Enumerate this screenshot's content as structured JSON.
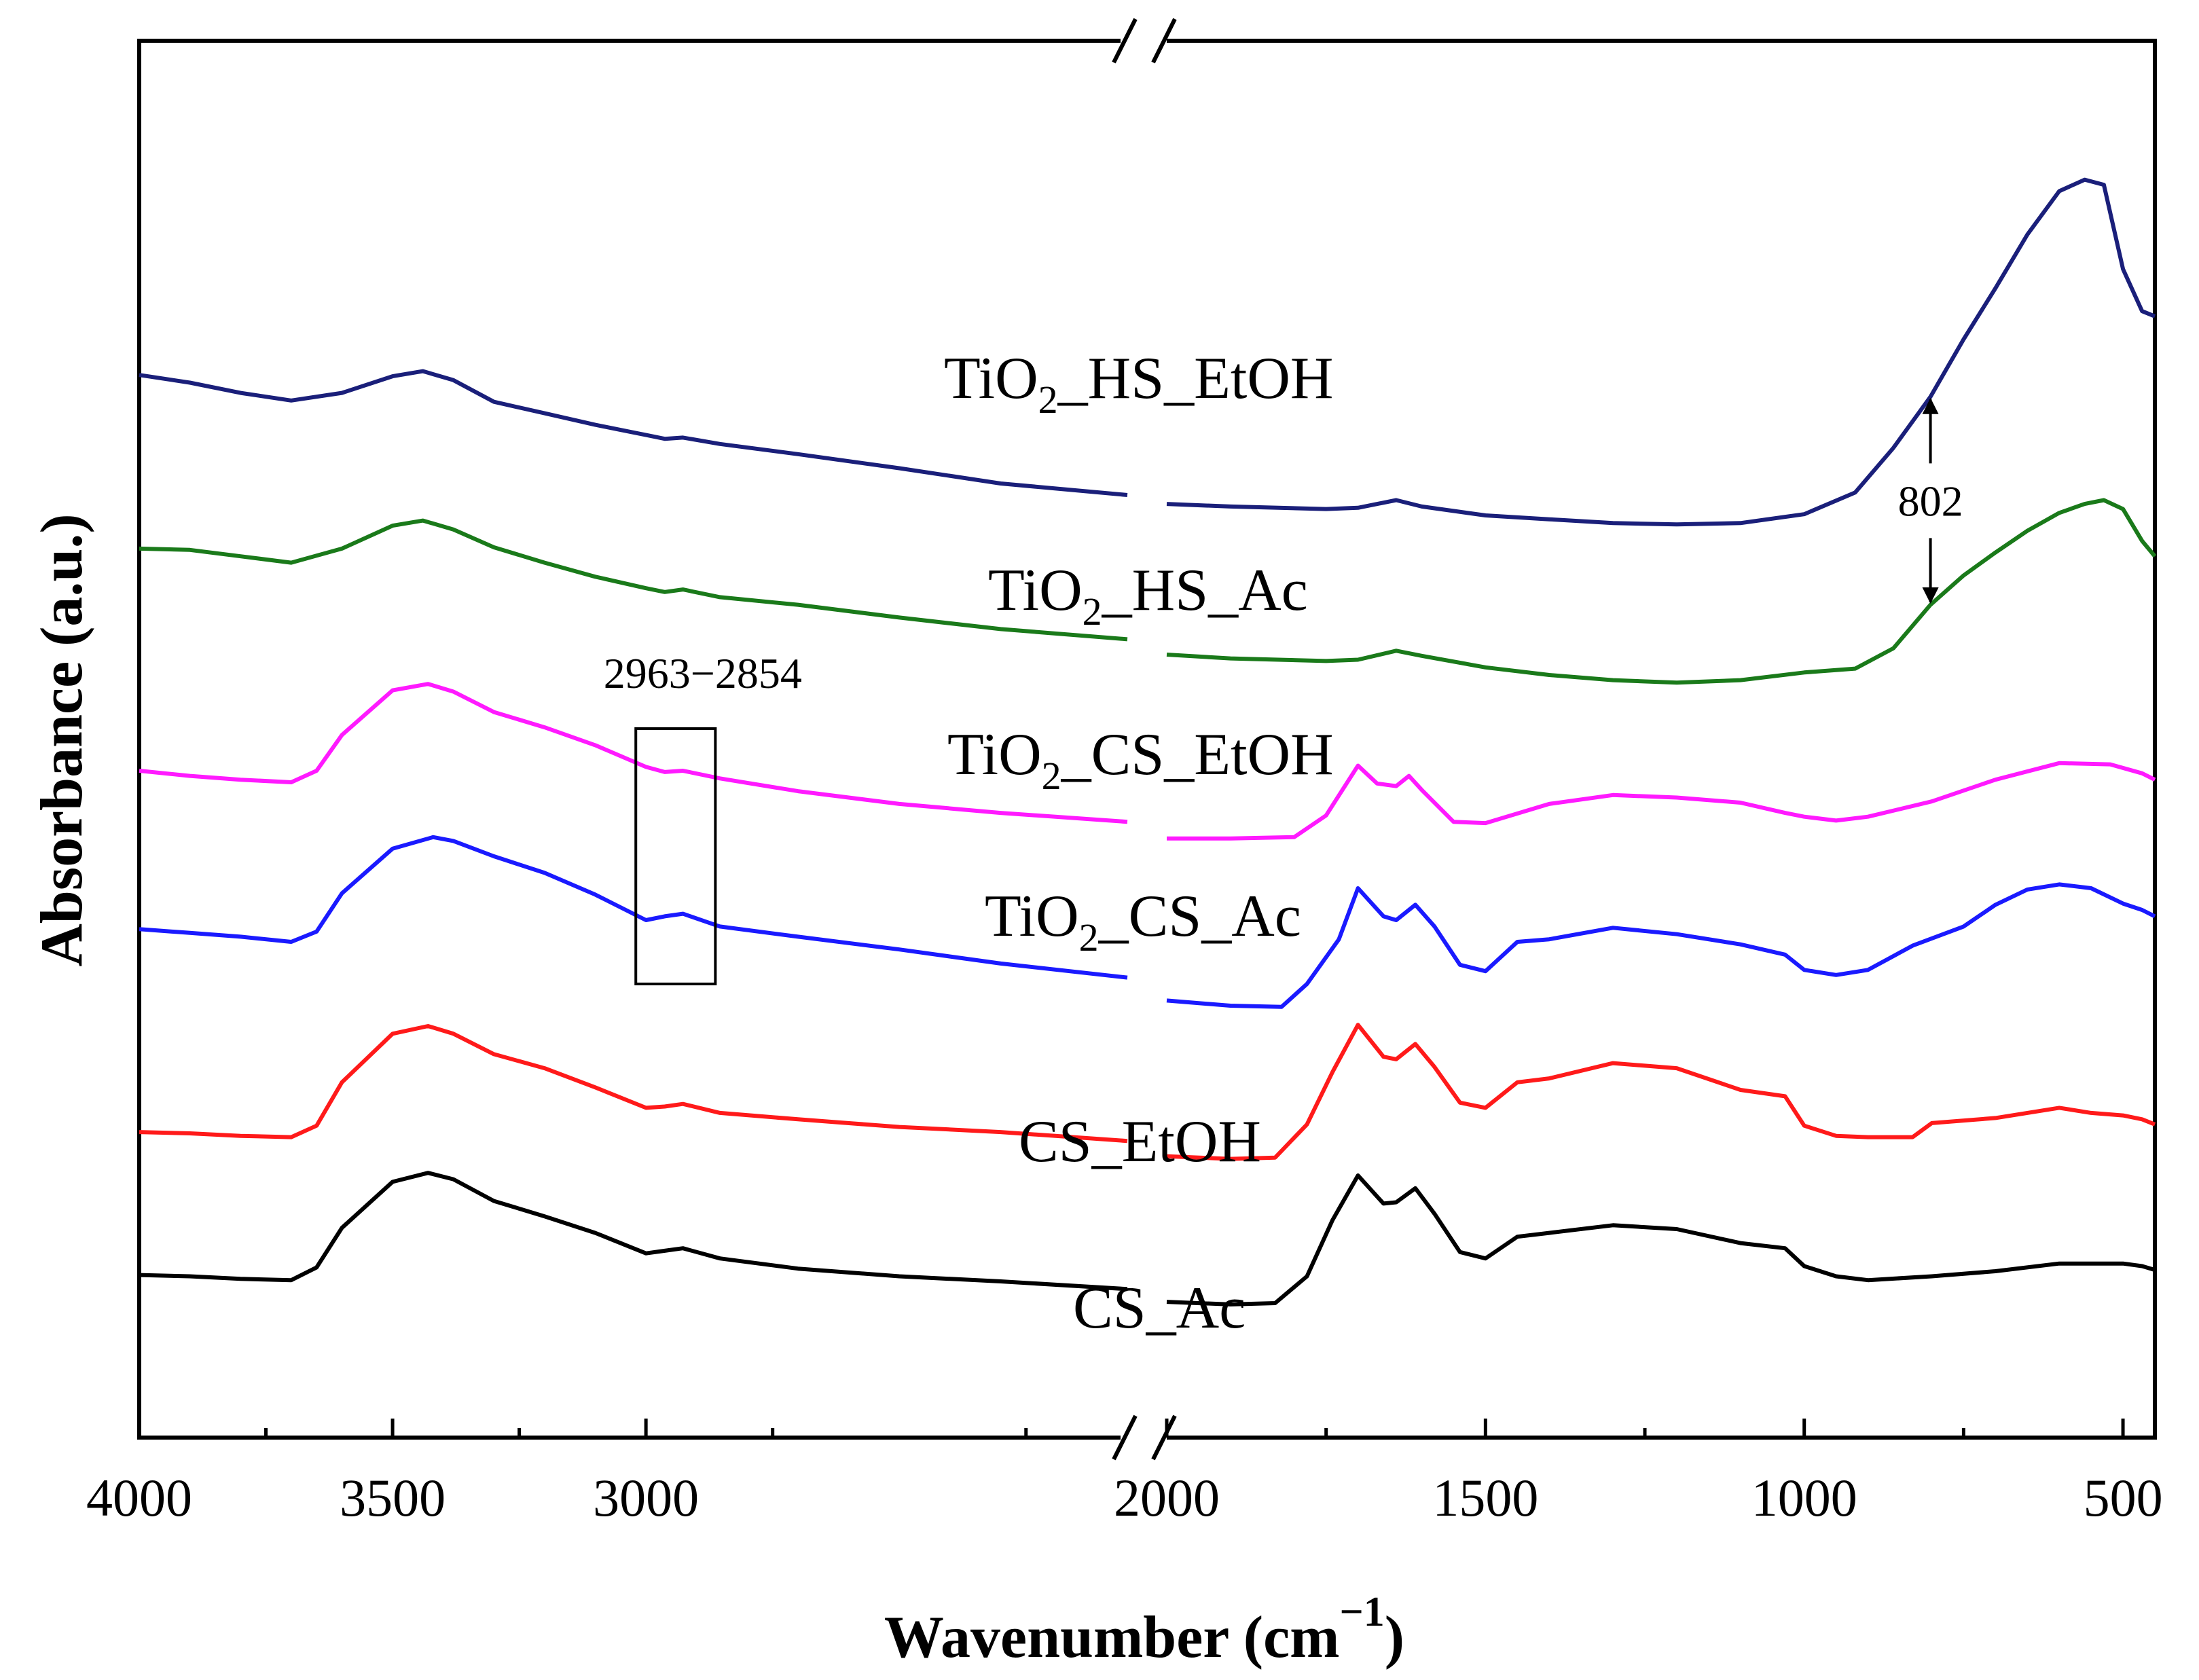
{
  "chart_data": {
    "type": "line",
    "title": "",
    "xlabel": "Wavenumber (cm",
    "xlabel_sup": "−1",
    "xlabel_close": ")",
    "ylabel": "Absorbance (a.u.)",
    "x_axis_reversed": true,
    "x_axis_break": [
      2050,
      2000
    ],
    "xlim_left_segment": [
      4000,
      2050
    ],
    "xlim_right_segment": [
      2000,
      450
    ],
    "xticks": [
      4000,
      3500,
      3000,
      2000,
      1500,
      1000,
      500
    ],
    "xtick_labels": [
      "4000",
      "3500",
      "3000",
      "2000",
      "1500",
      "1000",
      "500"
    ],
    "y_ticks_shown": false,
    "ylim_display": [
      0,
      100
    ],
    "series": [
      {
        "name": "TiO2_HS_EtOH",
        "label_main": "TiO",
        "label_sub": "2",
        "label_rest": "_HS_EtOH",
        "color": "#1a1f7a",
        "points": [
          [
            4000,
            80.2
          ],
          [
            3900,
            79.6
          ],
          [
            3800,
            78.8
          ],
          [
            3700,
            78.2
          ],
          [
            3600,
            78.8
          ],
          [
            3500,
            80.1
          ],
          [
            3440,
            80.5
          ],
          [
            3380,
            79.8
          ],
          [
            3300,
            78.1
          ],
          [
            3200,
            77.2
          ],
          [
            3100,
            76.3
          ],
          [
            3000,
            75.5
          ],
          [
            2963,
            75.2
          ],
          [
            2927,
            75.3
          ],
          [
            2854,
            74.8
          ],
          [
            2700,
            74.0
          ],
          [
            2500,
            72.9
          ],
          [
            2300,
            71.7
          ],
          [
            2050,
            70.8
          ],
          [
            2000,
            70.1
          ],
          [
            1900,
            69.9
          ],
          [
            1750,
            69.7
          ],
          [
            1700,
            69.8
          ],
          [
            1640,
            70.4
          ],
          [
            1600,
            69.9
          ],
          [
            1500,
            69.2
          ],
          [
            1400,
            68.9
          ],
          [
            1300,
            68.6
          ],
          [
            1200,
            68.5
          ],
          [
            1100,
            68.6
          ],
          [
            1000,
            69.3
          ],
          [
            920,
            71.0
          ],
          [
            860,
            74.5
          ],
          [
            802,
            78.5
          ],
          [
            750,
            83.0
          ],
          [
            700,
            87.0
          ],
          [
            650,
            91.2
          ],
          [
            600,
            94.6
          ],
          [
            560,
            95.5
          ],
          [
            530,
            95.1
          ],
          [
            500,
            88.5
          ],
          [
            470,
            85.2
          ],
          [
            450,
            84.8
          ]
        ]
      },
      {
        "name": "TiO2_HS_Ac",
        "label_main": "TiO",
        "label_sub": "2",
        "label_rest": "_HS_Ac",
        "color": "#1a7a1a",
        "points": [
          [
            4000,
            66.6
          ],
          [
            3900,
            66.5
          ],
          [
            3800,
            66.0
          ],
          [
            3700,
            65.5
          ],
          [
            3600,
            66.6
          ],
          [
            3500,
            68.4
          ],
          [
            3440,
            68.8
          ],
          [
            3380,
            68.1
          ],
          [
            3300,
            66.7
          ],
          [
            3200,
            65.5
          ],
          [
            3100,
            64.4
          ],
          [
            3000,
            63.5
          ],
          [
            2963,
            63.2
          ],
          [
            2927,
            63.4
          ],
          [
            2854,
            62.8
          ],
          [
            2700,
            62.2
          ],
          [
            2500,
            61.2
          ],
          [
            2300,
            60.3
          ],
          [
            2050,
            59.5
          ],
          [
            2000,
            58.3
          ],
          [
            1900,
            58.0
          ],
          [
            1750,
            57.8
          ],
          [
            1700,
            57.9
          ],
          [
            1640,
            58.6
          ],
          [
            1600,
            58.2
          ],
          [
            1500,
            57.3
          ],
          [
            1400,
            56.7
          ],
          [
            1300,
            56.3
          ],
          [
            1200,
            56.1
          ],
          [
            1100,
            56.3
          ],
          [
            1000,
            56.9
          ],
          [
            920,
            57.2
          ],
          [
            860,
            58.8
          ],
          [
            802,
            62.2
          ],
          [
            750,
            64.5
          ],
          [
            700,
            66.3
          ],
          [
            650,
            68.0
          ],
          [
            600,
            69.4
          ],
          [
            560,
            70.1
          ],
          [
            530,
            70.4
          ],
          [
            500,
            69.7
          ],
          [
            470,
            67.2
          ],
          [
            450,
            66.0
          ]
        ]
      },
      {
        "name": "TiO2_CS_EtOH",
        "label_main": "TiO",
        "label_sub": "2",
        "label_rest": "_CS_EtOH",
        "color": "#ff1aff",
        "points": [
          [
            4000,
            49.2
          ],
          [
            3900,
            48.8
          ],
          [
            3800,
            48.5
          ],
          [
            3700,
            48.3
          ],
          [
            3650,
            49.2
          ],
          [
            3600,
            52.0
          ],
          [
            3500,
            55.5
          ],
          [
            3430,
            56.0
          ],
          [
            3380,
            55.4
          ],
          [
            3300,
            53.8
          ],
          [
            3200,
            52.6
          ],
          [
            3100,
            51.2
          ],
          [
            3000,
            49.5
          ],
          [
            2963,
            49.1
          ],
          [
            2927,
            49.2
          ],
          [
            2854,
            48.6
          ],
          [
            2700,
            47.6
          ],
          [
            2500,
            46.6
          ],
          [
            2300,
            45.9
          ],
          [
            2050,
            45.2
          ],
          [
            2000,
            43.9
          ],
          [
            1900,
            43.9
          ],
          [
            1800,
            44.0
          ],
          [
            1750,
            45.7
          ],
          [
            1700,
            49.6
          ],
          [
            1670,
            48.2
          ],
          [
            1640,
            48.0
          ],
          [
            1620,
            48.8
          ],
          [
            1600,
            47.7
          ],
          [
            1550,
            45.2
          ],
          [
            1500,
            45.1
          ],
          [
            1400,
            46.6
          ],
          [
            1300,
            47.3
          ],
          [
            1200,
            47.1
          ],
          [
            1100,
            46.7
          ],
          [
            1030,
            45.9
          ],
          [
            1000,
            45.6
          ],
          [
            950,
            45.3
          ],
          [
            900,
            45.6
          ],
          [
            800,
            46.8
          ],
          [
            700,
            48.5
          ],
          [
            600,
            49.8
          ],
          [
            520,
            49.7
          ],
          [
            470,
            49.0
          ],
          [
            450,
            48.5
          ]
        ]
      },
      {
        "name": "TiO2_CS_Ac",
        "label_main": "TiO",
        "label_sub": "2",
        "label_rest": "_CS_Ac",
        "color": "#1a1aff",
        "points": [
          [
            4000,
            36.8
          ],
          [
            3900,
            36.5
          ],
          [
            3800,
            36.2
          ],
          [
            3700,
            35.8
          ],
          [
            3650,
            36.6
          ],
          [
            3600,
            39.6
          ],
          [
            3500,
            43.1
          ],
          [
            3420,
            44.0
          ],
          [
            3380,
            43.7
          ],
          [
            3300,
            42.5
          ],
          [
            3200,
            41.2
          ],
          [
            3100,
            39.5
          ],
          [
            3000,
            37.5
          ],
          [
            2963,
            37.8
          ],
          [
            2927,
            38.0
          ],
          [
            2854,
            37.0
          ],
          [
            2700,
            36.2
          ],
          [
            2500,
            35.2
          ],
          [
            2300,
            34.1
          ],
          [
            2050,
            33.0
          ],
          [
            2000,
            31.2
          ],
          [
            1900,
            30.8
          ],
          [
            1820,
            30.7
          ],
          [
            1780,
            32.5
          ],
          [
            1730,
            36.0
          ],
          [
            1700,
            40.0
          ],
          [
            1660,
            37.8
          ],
          [
            1640,
            37.5
          ],
          [
            1610,
            38.7
          ],
          [
            1580,
            37.0
          ],
          [
            1540,
            34.0
          ],
          [
            1500,
            33.5
          ],
          [
            1450,
            35.8
          ],
          [
            1400,
            36.0
          ],
          [
            1300,
            36.9
          ],
          [
            1200,
            36.4
          ],
          [
            1100,
            35.6
          ],
          [
            1030,
            34.8
          ],
          [
            1000,
            33.6
          ],
          [
            950,
            33.2
          ],
          [
            900,
            33.6
          ],
          [
            830,
            35.5
          ],
          [
            750,
            37.0
          ],
          [
            700,
            38.7
          ],
          [
            650,
            39.9
          ],
          [
            600,
            40.3
          ],
          [
            550,
            40.0
          ],
          [
            500,
            38.8
          ],
          [
            470,
            38.3
          ],
          [
            450,
            37.8
          ]
        ]
      },
      {
        "name": "CS_EtOH",
        "label_main": "CS_EtOH",
        "label_sub": "",
        "label_rest": "",
        "color": "#ff1a1a",
        "points": [
          [
            4000,
            20.9
          ],
          [
            3900,
            20.8
          ],
          [
            3800,
            20.6
          ],
          [
            3700,
            20.5
          ],
          [
            3650,
            21.4
          ],
          [
            3600,
            24.8
          ],
          [
            3500,
            28.6
          ],
          [
            3430,
            29.2
          ],
          [
            3380,
            28.6
          ],
          [
            3300,
            27.0
          ],
          [
            3200,
            25.9
          ],
          [
            3100,
            24.4
          ],
          [
            3000,
            22.8
          ],
          [
            2963,
            22.9
          ],
          [
            2927,
            23.1
          ],
          [
            2854,
            22.4
          ],
          [
            2700,
            21.9
          ],
          [
            2500,
            21.3
          ],
          [
            2300,
            20.9
          ],
          [
            2050,
            20.2
          ],
          [
            2000,
            19.0
          ],
          [
            1900,
            18.8
          ],
          [
            1830,
            18.9
          ],
          [
            1780,
            21.5
          ],
          [
            1740,
            25.6
          ],
          [
            1700,
            29.3
          ],
          [
            1660,
            26.8
          ],
          [
            1640,
            26.6
          ],
          [
            1610,
            27.8
          ],
          [
            1580,
            26.0
          ],
          [
            1540,
            23.2
          ],
          [
            1500,
            22.8
          ],
          [
            1450,
            24.8
          ],
          [
            1400,
            25.1
          ],
          [
            1300,
            26.3
          ],
          [
            1200,
            25.9
          ],
          [
            1100,
            24.2
          ],
          [
            1030,
            23.7
          ],
          [
            1000,
            21.4
          ],
          [
            950,
            20.6
          ],
          [
            900,
            20.5
          ],
          [
            830,
            20.5
          ],
          [
            800,
            21.6
          ],
          [
            700,
            22.0
          ],
          [
            600,
            22.8
          ],
          [
            550,
            22.4
          ],
          [
            500,
            22.2
          ],
          [
            470,
            21.9
          ],
          [
            450,
            21.5
          ]
        ]
      },
      {
        "name": "CS_Ac",
        "label_main": "CS_Ac",
        "label_sub": "",
        "label_rest": "",
        "color": "#000000",
        "points": [
          [
            4000,
            9.7
          ],
          [
            3900,
            9.6
          ],
          [
            3800,
            9.4
          ],
          [
            3700,
            9.3
          ],
          [
            3650,
            10.3
          ],
          [
            3600,
            13.4
          ],
          [
            3500,
            17.0
          ],
          [
            3430,
            17.7
          ],
          [
            3380,
            17.2
          ],
          [
            3300,
            15.5
          ],
          [
            3200,
            14.3
          ],
          [
            3100,
            13.0
          ],
          [
            3000,
            11.4
          ],
          [
            2963,
            11.6
          ],
          [
            2927,
            11.8
          ],
          [
            2854,
            11.0
          ],
          [
            2700,
            10.2
          ],
          [
            2500,
            9.6
          ],
          [
            2300,
            9.2
          ],
          [
            2050,
            8.6
          ],
          [
            2000,
            7.6
          ],
          [
            1900,
            7.4
          ],
          [
            1830,
            7.5
          ],
          [
            1780,
            9.6
          ],
          [
            1740,
            14.0
          ],
          [
            1700,
            17.5
          ],
          [
            1660,
            15.3
          ],
          [
            1640,
            15.4
          ],
          [
            1610,
            16.5
          ],
          [
            1580,
            14.5
          ],
          [
            1540,
            11.5
          ],
          [
            1500,
            11.0
          ],
          [
            1450,
            12.7
          ],
          [
            1400,
            13.0
          ],
          [
            1300,
            13.6
          ],
          [
            1200,
            13.3
          ],
          [
            1100,
            12.2
          ],
          [
            1030,
            11.8
          ],
          [
            1000,
            10.4
          ],
          [
            950,
            9.6
          ],
          [
            900,
            9.3
          ],
          [
            800,
            9.6
          ],
          [
            700,
            10.0
          ],
          [
            600,
            10.6
          ],
          [
            500,
            10.6
          ],
          [
            470,
            10.4
          ],
          [
            450,
            10.1
          ]
        ]
      }
    ],
    "annotations": [
      {
        "text": "2963−2854",
        "type": "box",
        "x_range": [
          3020,
          2863
        ],
        "y_range": [
          32.5,
          52.5
        ]
      },
      {
        "text": "802",
        "type": "double-arrow",
        "x": 802,
        "y_top": 78.5,
        "y_bottom": 62.2
      }
    ]
  }
}
